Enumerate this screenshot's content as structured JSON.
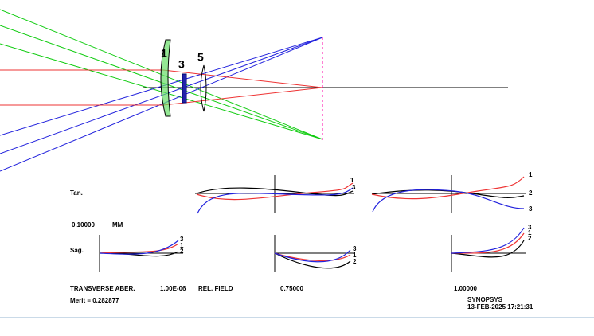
{
  "lens_numbers": [
    "1",
    "3",
    "5"
  ],
  "row_labels": {
    "tan": "Tan.",
    "sag": "Sag."
  },
  "scale": {
    "value": "0.10000",
    "unit": "MM"
  },
  "plots": [
    {
      "curve_labels": [
        "1",
        "3"
      ]
    },
    {
      "curve_labels": [
        "1",
        "2",
        "3"
      ]
    },
    {
      "curve_labels": [
        "3",
        "1",
        "2"
      ]
    },
    {
      "curve_labels": [
        "3",
        "1",
        "2"
      ]
    },
    {
      "curve_labels": [
        "3",
        "1",
        "2"
      ]
    }
  ],
  "footer": {
    "title": "TRANSVERSE ABER.",
    "wavelength": "1.00E-06",
    "field_label": "REL. FIELD",
    "fields": [
      "0.75000",
      "1.00000"
    ],
    "merit": "Merit = 0.282877",
    "program": "SYNOPSYS",
    "timestamp": "13-FEB-2025 17:21:31"
  }
}
